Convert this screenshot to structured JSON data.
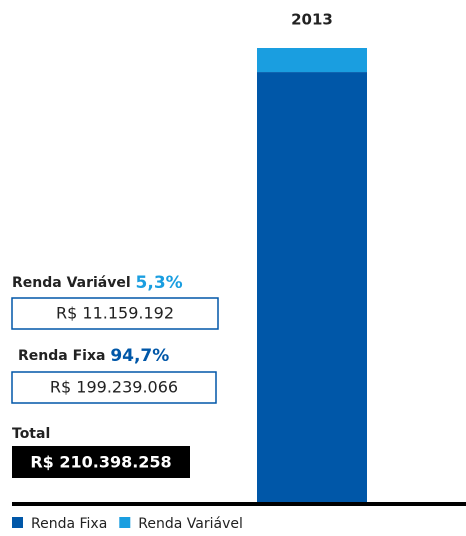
{
  "chart_data": {
    "type": "bar",
    "stacked": true,
    "categories": [
      "2013"
    ],
    "series": [
      {
        "name": "Renda Fixa",
        "color": "#0057a8",
        "values": [
          94.7
        ],
        "value_labels": [
          "94,7%"
        ],
        "amount": "R$ 199.239.066"
      },
      {
        "name": "Renda Variável",
        "color": "#1a9ee0",
        "values": [
          5.3
        ],
        "value_labels": [
          "5,3%"
        ],
        "amount": "R$ 11.159.192"
      }
    ],
    "total_label": "Total",
    "total_amount": "R$ 210.398.258"
  }
}
